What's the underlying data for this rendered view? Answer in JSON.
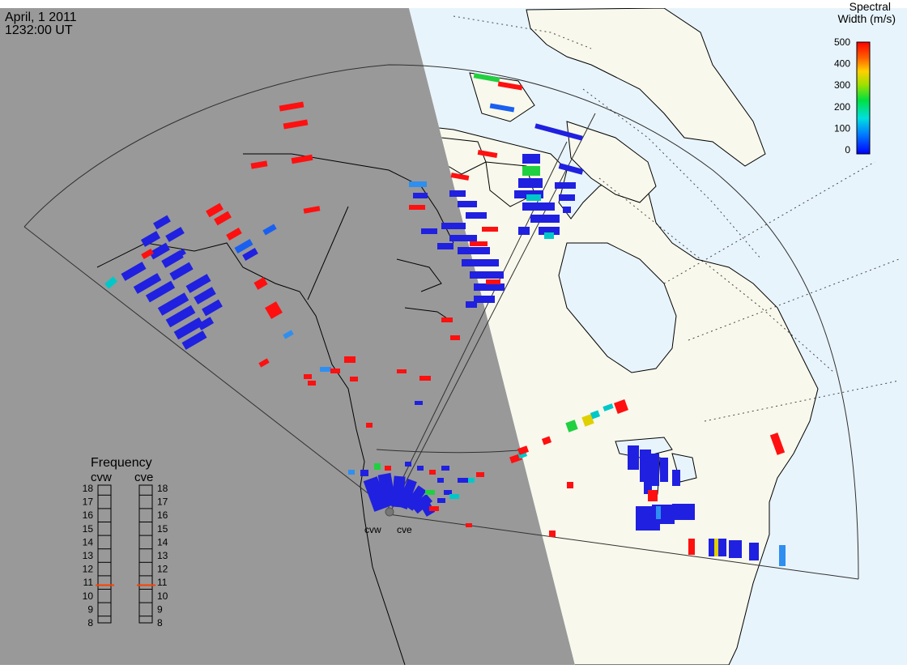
{
  "header": {
    "date": "April, 1 2011",
    "time": "1232:00 UT"
  },
  "colorbar": {
    "title_line1": "Spectral",
    "title_line2": "Width (m/s)",
    "ticks": [
      "500",
      "400",
      "300",
      "200",
      "100",
      "0"
    ]
  },
  "frequency_panel": {
    "title": "Frequency",
    "radar_left": "cvw",
    "radar_right": "cve",
    "ticks": [
      "18",
      "17",
      "16",
      "15",
      "14",
      "13",
      "12",
      "11",
      "10",
      "9",
      "8"
    ],
    "selected_mhz_left": 10.8,
    "selected_mhz_right": 10.8
  },
  "radars": [
    {
      "label": "cvw"
    },
    {
      "label": "cve"
    }
  ],
  "colors": {
    "night": "#999999",
    "day_land": "#f8f8ec",
    "day_ocean": "#e8f4fc",
    "scatter_low": "#2020e0",
    "scatter_high": "#ff1010",
    "freq_marker": "#ff4000"
  }
}
